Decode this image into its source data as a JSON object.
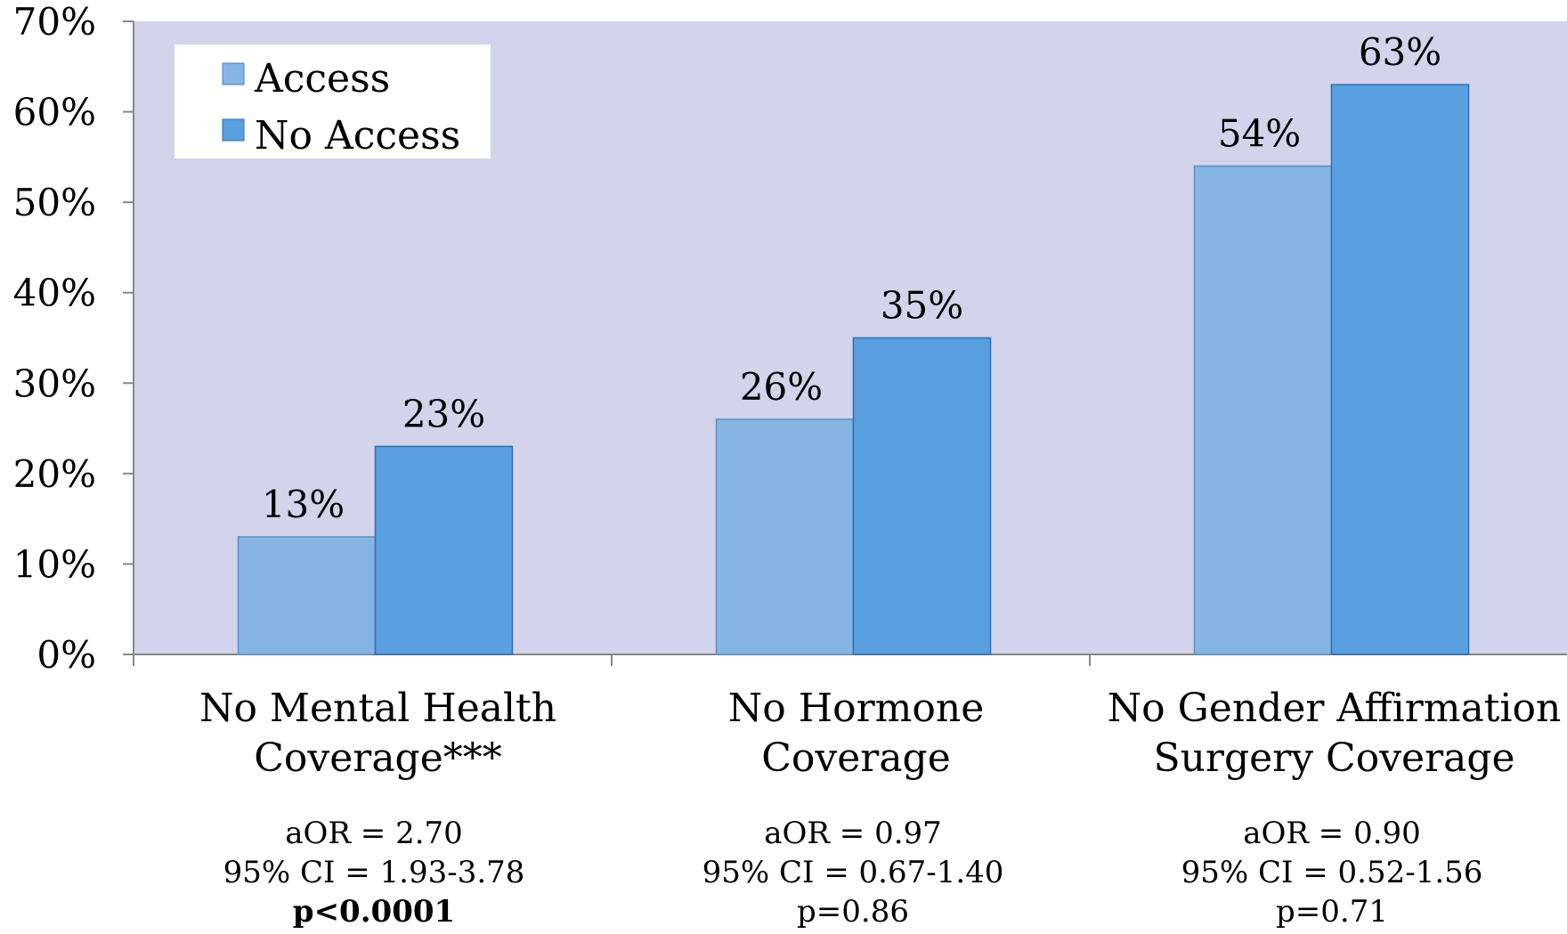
{
  "chart_data": {
    "type": "bar",
    "categories": [
      [
        "No Mental Health",
        "Coverage***"
      ],
      [
        "No Hormone",
        "Coverage"
      ],
      [
        "No Gender Affirmation",
        "Surgery Coverage"
      ]
    ],
    "series": [
      {
        "name": "Access",
        "values": [
          13,
          26,
          54
        ],
        "color": "#86b4e3"
      },
      {
        "name": "No Access",
        "values": [
          23,
          35,
          63
        ],
        "color": "#5aa0e0"
      }
    ],
    "data_labels": [
      [
        "13%",
        "26%",
        "54%"
      ],
      [
        "23%",
        "35%",
        "63%"
      ]
    ],
    "ylim": [
      0,
      70
    ],
    "yticks": [
      "0%",
      "10%",
      "20%",
      "30%",
      "40%",
      "50%",
      "60%",
      "70%"
    ],
    "legend_position": "top-left",
    "plot_background": "#d3d4ec",
    "grid": false
  },
  "stats": [
    {
      "aor": "aOR = 2.70",
      "ci": "95% CI = 1.93-3.78",
      "p": "p<0.0001",
      "p_bold": true
    },
    {
      "aor": "aOR = 0.97",
      "ci": "95% CI =  0.67-1.40",
      "p": "p=0.86",
      "p_bold": false
    },
    {
      "aor": "aOR = 0.90",
      "ci": "95% CI = 0.52-1.56",
      "p": "p=0.71",
      "p_bold": false
    }
  ]
}
